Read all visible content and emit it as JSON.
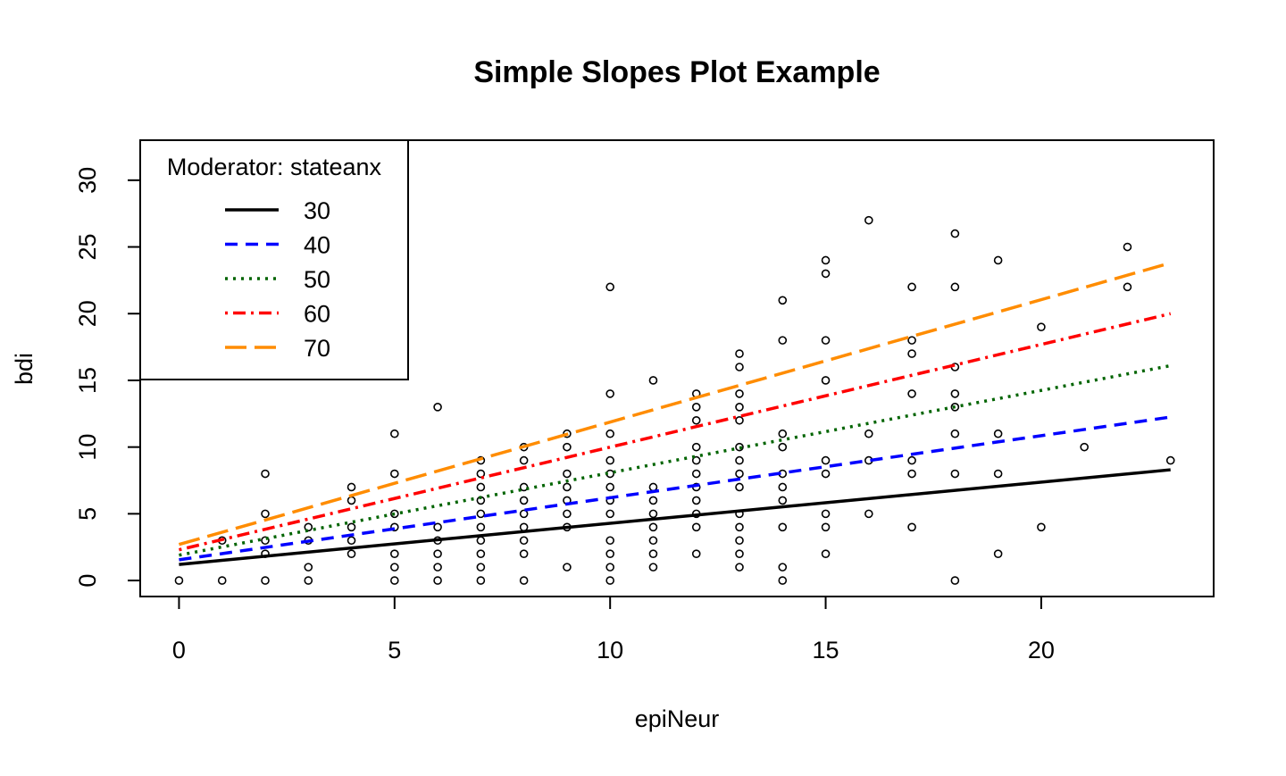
{
  "chart_data": {
    "type": "scatter",
    "title": "Simple Slopes Plot Example",
    "xlabel": "epiNeur",
    "ylabel": "bdi",
    "xlim": [
      -0.9,
      24
    ],
    "ylim": [
      -1.2,
      33
    ],
    "x_ticks": [
      0,
      5,
      10,
      15,
      20
    ],
    "y_ticks": [
      0,
      5,
      10,
      15,
      20,
      25,
      30
    ],
    "grid": false,
    "legend": {
      "title": "Moderator: stateanx",
      "placement": "top-left",
      "entries": [
        "30",
        "40",
        "50",
        "60",
        "70"
      ]
    },
    "points": [
      [
        0,
        0
      ],
      [
        1,
        0
      ],
      [
        1,
        3
      ],
      [
        2,
        0
      ],
      [
        2,
        2
      ],
      [
        2,
        3
      ],
      [
        2,
        5
      ],
      [
        2,
        8
      ],
      [
        3,
        0
      ],
      [
        3,
        1
      ],
      [
        3,
        3
      ],
      [
        3,
        4
      ],
      [
        4,
        2
      ],
      [
        4,
        3
      ],
      [
        4,
        4
      ],
      [
        4,
        6
      ],
      [
        4,
        7
      ],
      [
        5,
        0
      ],
      [
        5,
        1
      ],
      [
        5,
        2
      ],
      [
        5,
        4
      ],
      [
        5,
        5
      ],
      [
        5,
        8
      ],
      [
        5,
        11
      ],
      [
        6,
        0
      ],
      [
        6,
        1
      ],
      [
        6,
        2
      ],
      [
        6,
        3
      ],
      [
        6,
        4
      ],
      [
        6,
        13
      ],
      [
        7,
        0
      ],
      [
        7,
        1
      ],
      [
        7,
        2
      ],
      [
        7,
        3
      ],
      [
        7,
        4
      ],
      [
        7,
        5
      ],
      [
        7,
        6
      ],
      [
        7,
        7
      ],
      [
        7,
        8
      ],
      [
        7,
        9
      ],
      [
        8,
        0
      ],
      [
        8,
        2
      ],
      [
        8,
        3
      ],
      [
        8,
        4
      ],
      [
        8,
        5
      ],
      [
        8,
        6
      ],
      [
        8,
        7
      ],
      [
        8,
        9
      ],
      [
        8,
        10
      ],
      [
        9,
        1
      ],
      [
        9,
        4
      ],
      [
        9,
        5
      ],
      [
        9,
        6
      ],
      [
        9,
        7
      ],
      [
        9,
        8
      ],
      [
        9,
        10
      ],
      [
        9,
        11
      ],
      [
        10,
        0
      ],
      [
        10,
        1
      ],
      [
        10,
        2
      ],
      [
        10,
        3
      ],
      [
        10,
        5
      ],
      [
        10,
        6
      ],
      [
        10,
        7
      ],
      [
        10,
        8
      ],
      [
        10,
        9
      ],
      [
        10,
        11
      ],
      [
        10,
        14
      ],
      [
        10,
        22
      ],
      [
        11,
        1
      ],
      [
        11,
        2
      ],
      [
        11,
        3
      ],
      [
        11,
        4
      ],
      [
        11,
        5
      ],
      [
        11,
        6
      ],
      [
        11,
        7
      ],
      [
        11,
        15
      ],
      [
        12,
        2
      ],
      [
        12,
        4
      ],
      [
        12,
        5
      ],
      [
        12,
        6
      ],
      [
        12,
        7
      ],
      [
        12,
        8
      ],
      [
        12,
        9
      ],
      [
        12,
        10
      ],
      [
        12,
        12
      ],
      [
        12,
        13
      ],
      [
        12,
        14
      ],
      [
        13,
        1
      ],
      [
        13,
        2
      ],
      [
        13,
        3
      ],
      [
        13,
        4
      ],
      [
        13,
        5
      ],
      [
        13,
        7
      ],
      [
        13,
        8
      ],
      [
        13,
        9
      ],
      [
        13,
        10
      ],
      [
        13,
        12
      ],
      [
        13,
        13
      ],
      [
        13,
        14
      ],
      [
        13,
        16
      ],
      [
        13,
        17
      ],
      [
        14,
        0
      ],
      [
        14,
        1
      ],
      [
        14,
        4
      ],
      [
        14,
        6
      ],
      [
        14,
        7
      ],
      [
        14,
        8
      ],
      [
        14,
        10
      ],
      [
        14,
        11
      ],
      [
        14,
        18
      ],
      [
        14,
        21
      ],
      [
        15,
        2
      ],
      [
        15,
        4
      ],
      [
        15,
        5
      ],
      [
        15,
        8
      ],
      [
        15,
        9
      ],
      [
        15,
        15
      ],
      [
        15,
        18
      ],
      [
        15,
        23
      ],
      [
        15,
        24
      ],
      [
        16,
        5
      ],
      [
        16,
        9
      ],
      [
        16,
        11
      ],
      [
        16,
        27
      ],
      [
        17,
        4
      ],
      [
        17,
        8
      ],
      [
        17,
        9
      ],
      [
        17,
        14
      ],
      [
        17,
        17
      ],
      [
        17,
        18
      ],
      [
        17,
        22
      ],
      [
        18,
        0
      ],
      [
        18,
        8
      ],
      [
        18,
        11
      ],
      [
        18,
        13
      ],
      [
        18,
        14
      ],
      [
        18,
        16
      ],
      [
        18,
        22
      ],
      [
        18,
        26
      ],
      [
        19,
        2
      ],
      [
        19,
        8
      ],
      [
        19,
        11
      ],
      [
        19,
        24
      ],
      [
        20,
        4
      ],
      [
        20,
        19
      ],
      [
        21,
        10
      ],
      [
        22,
        22
      ],
      [
        22,
        25
      ],
      [
        23,
        9
      ]
    ],
    "series": [
      {
        "name": "30",
        "x": [
          0,
          23
        ],
        "y": [
          1.2,
          8.3
        ],
        "color": "#000000",
        "dash": "solid"
      },
      {
        "name": "40",
        "x": [
          0,
          23
        ],
        "y": [
          1.55,
          12.25
        ],
        "color": "#0000ff",
        "dash": "dashed"
      },
      {
        "name": "50",
        "x": [
          0,
          23
        ],
        "y": [
          1.9,
          16.1
        ],
        "color": "#006400",
        "dash": "dotted"
      },
      {
        "name": "60",
        "x": [
          0,
          23
        ],
        "y": [
          2.3,
          20.0
        ],
        "color": "#ff0000",
        "dash": "dotdash"
      },
      {
        "name": "70",
        "x": [
          0,
          23
        ],
        "y": [
          2.7,
          23.8
        ],
        "color": "#ff8c00",
        "dash": "longdash"
      }
    ]
  }
}
